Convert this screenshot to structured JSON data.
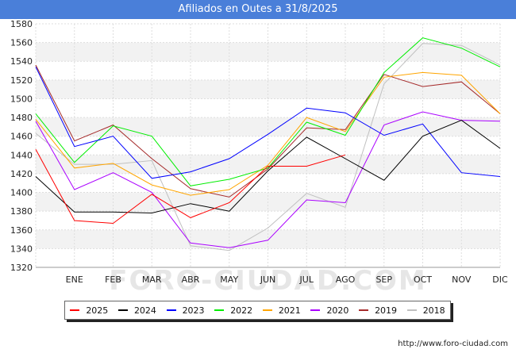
{
  "title": "Afiliados en Outes a 31/8/2025",
  "source": "http://www.foro-ciudad.com",
  "watermark": "FORO-CIUDAD.COM",
  "chart_data": {
    "type": "line",
    "categories": [
      "",
      "ENE",
      "FEB",
      "MAR",
      "ABR",
      "MAY",
      "JUN",
      "JUL",
      "AGO",
      "SEP",
      "OCT",
      "NOV",
      "DIC"
    ],
    "ylim": [
      1320,
      1580
    ],
    "yticks": [
      1320,
      1340,
      1360,
      1380,
      1400,
      1420,
      1440,
      1460,
      1480,
      1500,
      1520,
      1540,
      1560,
      1580
    ],
    "grid": true,
    "legend_position": "bottom",
    "series": [
      {
        "name": "2025",
        "color": "#ff0000",
        "values": [
          1446,
          1370,
          1367,
          1398,
          1373,
          1389,
          1428,
          1428,
          1440,
          null,
          null,
          null,
          null
        ]
      },
      {
        "name": "2024",
        "color": "#000000",
        "values": [
          1417,
          1379,
          1379,
          1378,
          1388,
          1380,
          1423,
          1459,
          1436,
          1413,
          1460,
          1477,
          1447
        ]
      },
      {
        "name": "2023",
        "color": "#0000ff",
        "values": [
          1534,
          1449,
          1460,
          1415,
          1422,
          1436,
          1462,
          1490,
          1485,
          1461,
          1473,
          1421,
          1417
        ]
      },
      {
        "name": "2022",
        "color": "#00ee00",
        "values": [
          1484,
          1432,
          1471,
          1460,
          1407,
          1414,
          1426,
          1475,
          1461,
          1528,
          1565,
          1554,
          1534
        ]
      },
      {
        "name": "2021",
        "color": "#ffa500",
        "values": [
          1478,
          1426,
          1431,
          1408,
          1397,
          1403,
          1429,
          1480,
          1465,
          1523,
          1528,
          1525,
          1484
        ]
      },
      {
        "name": "2020",
        "color": "#aa00ff",
        "values": [
          1476,
          1403,
          1421,
          1400,
          1346,
          1341,
          1349,
          1392,
          1389,
          1472,
          1486,
          1477,
          1476
        ]
      },
      {
        "name": "2019",
        "color": "#a52a2a",
        "values": [
          1536,
          1455,
          1472,
          1436,
          1404,
          1395,
          1425,
          1469,
          1467,
          1526,
          1513,
          1518,
          1484
        ]
      },
      {
        "name": "2018",
        "color": "#c0c0c0",
        "values": [
          1463,
          1430,
          1430,
          1434,
          1343,
          1338,
          1362,
          1399,
          1384,
          1516,
          1559,
          1557,
          1536
        ]
      }
    ]
  }
}
